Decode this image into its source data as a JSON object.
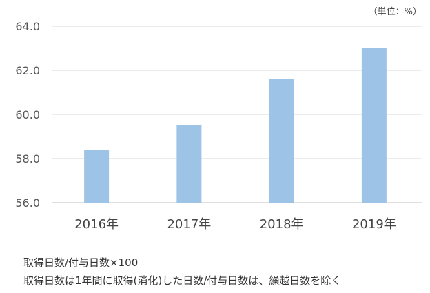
{
  "unit_label": "（単位：%）",
  "notes": [
    "取得日数/付与日数×100",
    "取得日数は1年間に取得(消化)した日数/付与日数は、繰越日数を除く"
  ],
  "chart_data": {
    "type": "bar",
    "categories": [
      "2016年",
      "2017年",
      "2018年",
      "2019年"
    ],
    "values": [
      58.4,
      59.5,
      61.6,
      63.0
    ],
    "title": "",
    "xlabel": "",
    "ylabel": "",
    "ylim": [
      56.0,
      64.0
    ],
    "yticks": [
      "56.0",
      "58.0",
      "60.0",
      "62.0",
      "64.0"
    ],
    "grid": true,
    "bar_color": "#9dc3e6"
  }
}
